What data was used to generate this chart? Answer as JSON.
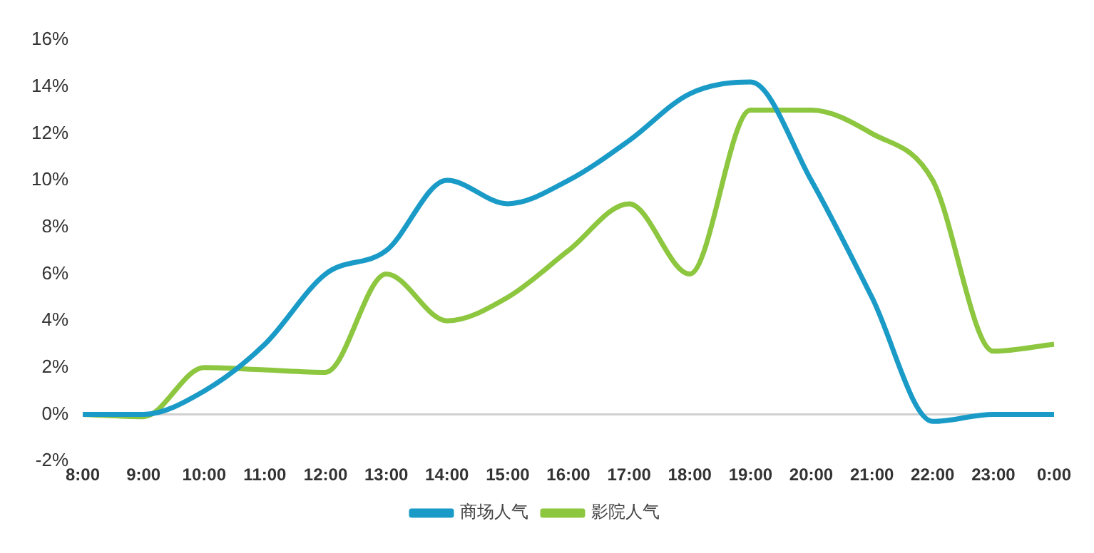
{
  "chart_data": {
    "type": "line",
    "categories": [
      "8:00",
      "9:00",
      "10:00",
      "11:00",
      "12:00",
      "13:00",
      "14:00",
      "15:00",
      "16:00",
      "17:00",
      "18:00",
      "19:00",
      "20:00",
      "21:00",
      "22:00",
      "23:00",
      "0:00"
    ],
    "series": [
      {
        "name": "商场人气",
        "color": "#1a9bc7",
        "values": [
          0,
          0,
          1,
          3,
          6,
          7,
          10,
          9,
          10,
          11.7,
          13.7,
          14.2,
          10,
          5,
          -0.3,
          0,
          0
        ]
      },
      {
        "name": "影院人气",
        "color": "#8dc63f",
        "values": [
          0,
          -0.1,
          2,
          1.9,
          1.8,
          6,
          4,
          5,
          7,
          9,
          6,
          13,
          13,
          12,
          10,
          2.7,
          3
        ]
      }
    ],
    "ylim": [
      -2,
      16
    ],
    "yticks": [
      {
        "value": -2,
        "label": "-2%"
      },
      {
        "value": 0,
        "label": "0%"
      },
      {
        "value": 2,
        "label": "2%"
      },
      {
        "value": 4,
        "label": "4%"
      },
      {
        "value": 6,
        "label": "6%"
      },
      {
        "value": 8,
        "label": "8%"
      },
      {
        "value": 10,
        "label": "10%"
      },
      {
        "value": 12,
        "label": "12%"
      },
      {
        "value": 14,
        "label": "14%"
      },
      {
        "value": 16,
        "label": "16%"
      }
    ],
    "ref_lines": [
      {
        "axis": "y",
        "value": 0,
        "color": "#d0d0d0"
      }
    ],
    "grid": false,
    "legend": "bottom",
    "marker": "none",
    "line_style": "solid"
  }
}
